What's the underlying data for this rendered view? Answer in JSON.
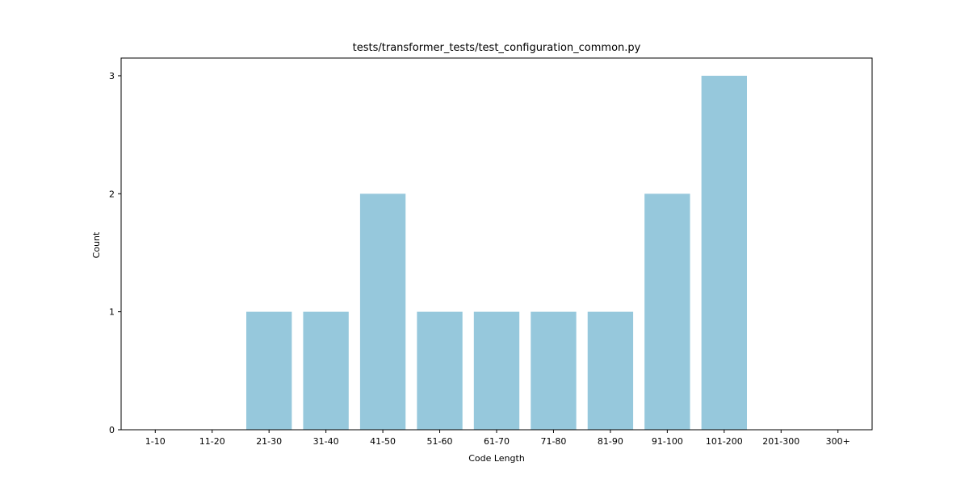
{
  "chart_data": {
    "type": "bar",
    "title": "tests/transformer_tests/test_configuration_common.py",
    "xlabel": "Code Length",
    "ylabel": "Count",
    "categories": [
      "1-10",
      "11-20",
      "21-30",
      "31-40",
      "41-50",
      "51-60",
      "61-70",
      "71-80",
      "81-90",
      "91-100",
      "101-200",
      "201-300",
      "300+"
    ],
    "values": [
      0,
      0,
      1,
      1,
      2,
      1,
      1,
      1,
      1,
      2,
      3,
      0,
      0
    ],
    "ylim": [
      0,
      3.15
    ],
    "yticks": [
      0,
      1,
      2,
      3
    ],
    "bar_color": "#96c8dc",
    "grid": false,
    "legend": "none"
  }
}
